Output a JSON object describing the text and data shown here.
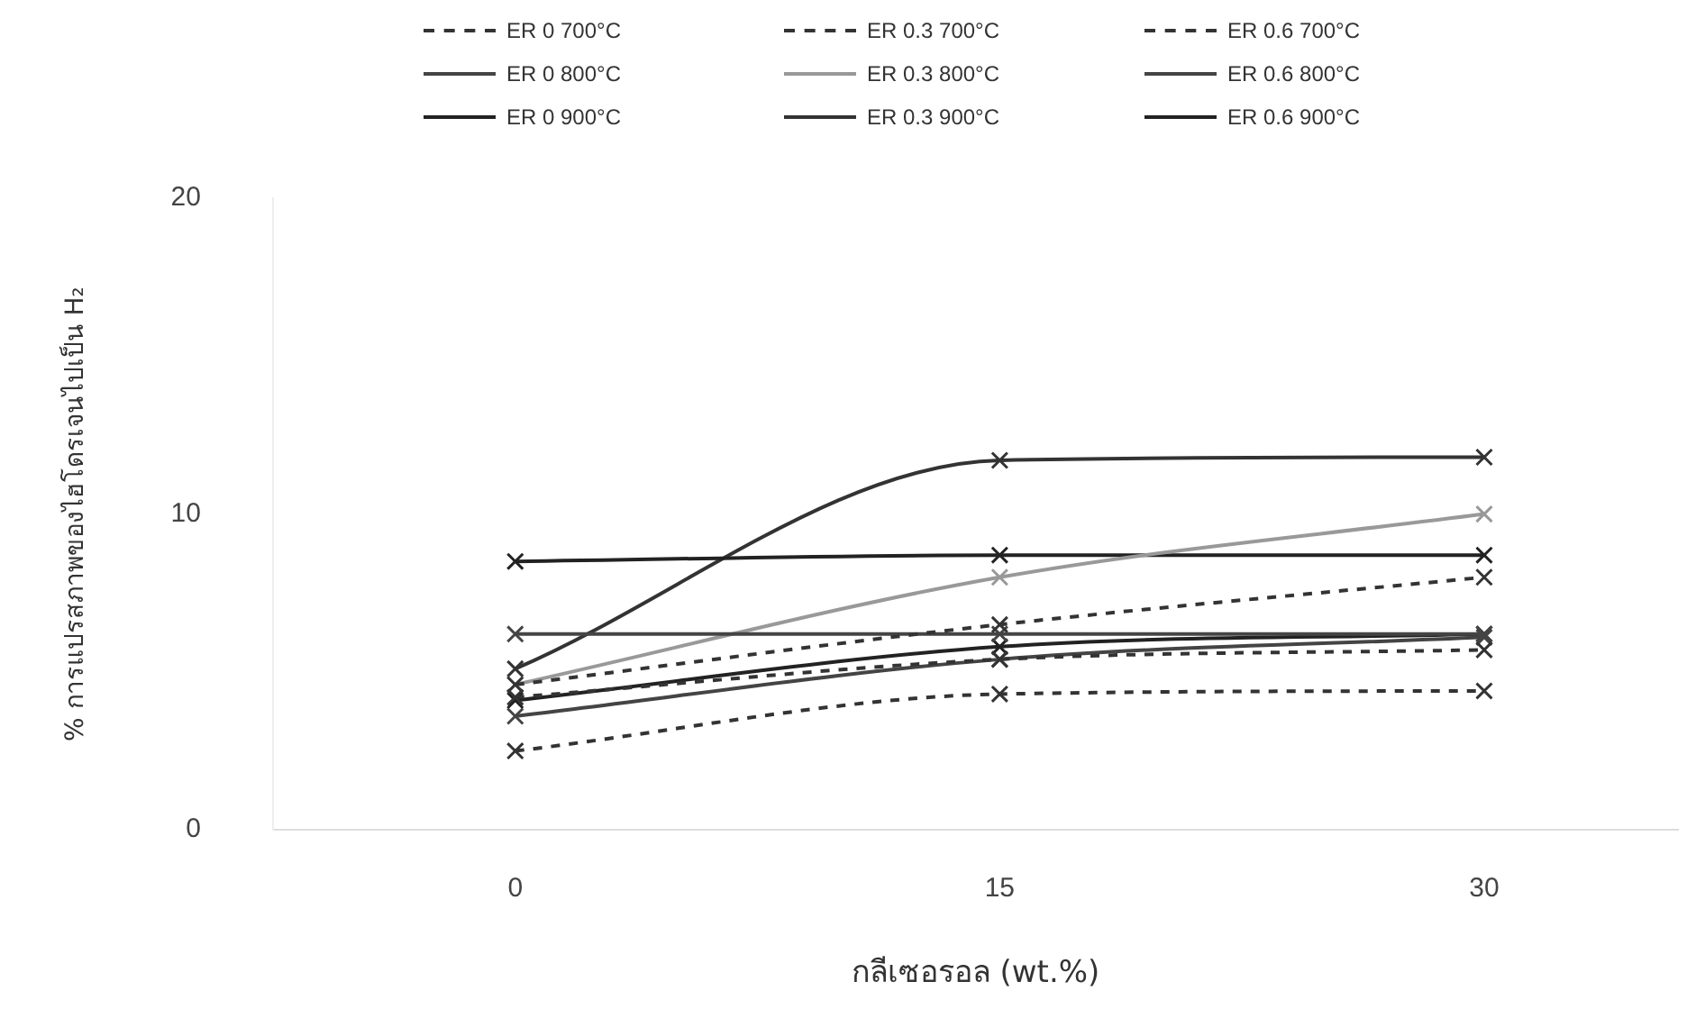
{
  "chart_data": {
    "type": "line",
    "xlabel": "กลีเซอรอล (wt.%)",
    "ylabel": "% การแปรสภาพของไฮโดรเจนไปเป็น H₂",
    "x": [
      0,
      15,
      30
    ],
    "xlim": [
      -7.5,
      36
    ],
    "xticks": [
      0,
      15,
      30
    ],
    "ylim": [
      0,
      20
    ],
    "yticks": [
      0,
      10,
      20
    ],
    "grid": false,
    "legend": "top",
    "series": [
      {
        "name": "ER 0 700°C",
        "color": "#333333",
        "line_style": "dashed",
        "marker": "cross",
        "values": [
          4.6,
          6.5,
          8.0
        ]
      },
      {
        "name": "ER 0.3 700°C",
        "color": "#333333",
        "line_style": "dashed",
        "marker": "cross",
        "values": [
          4.2,
          5.4,
          5.7
        ]
      },
      {
        "name": "ER 0.6 700°C",
        "color": "#333333",
        "line_style": "dashed",
        "marker": "cross",
        "values": [
          2.5,
          4.3,
          4.4
        ]
      },
      {
        "name": "ER 0 800°C",
        "color": "#444444",
        "line_style": "solid",
        "marker": "cross",
        "values": [
          6.2,
          6.2,
          6.2
        ]
      },
      {
        "name": "ER 0.3 800°C",
        "color": "#999999",
        "line_style": "solid",
        "marker": "cross",
        "values": [
          4.6,
          8.0,
          10.0
        ]
      },
      {
        "name": "ER 0.6 800°C",
        "color": "#444444",
        "line_style": "solid",
        "marker": "cross",
        "values": [
          3.6,
          5.4,
          6.1
        ]
      },
      {
        "name": "ER 0 900°C",
        "color": "#222222",
        "line_style": "solid",
        "marker": "cross",
        "values": [
          8.5,
          8.7,
          8.7
        ]
      },
      {
        "name": "ER 0.3 900°C",
        "color": "#333333",
        "line_style": "solid",
        "marker": "cross",
        "values": [
          5.1,
          11.7,
          11.8
        ]
      },
      {
        "name": "ER 0.6 900°C",
        "color": "#222222",
        "line_style": "solid",
        "marker": "cross",
        "values": [
          4.1,
          5.8,
          6.2
        ]
      }
    ]
  }
}
